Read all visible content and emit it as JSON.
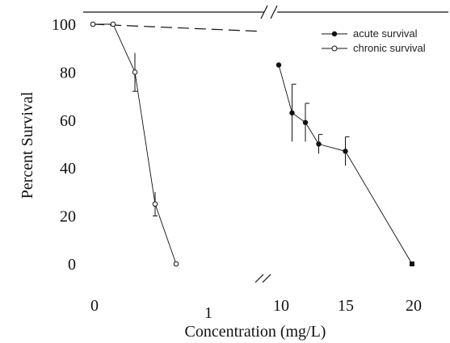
{
  "chart_data": {
    "type": "line",
    "xlabel": "Concentration (mg/L)",
    "ylabel": "Percent Survival",
    "ylim": [
      0,
      100
    ],
    "y_ticks": [
      "0",
      "20",
      "40",
      "60",
      "80",
      "100"
    ],
    "x_tick_labels": [
      "0",
      "1",
      "10",
      "15",
      "20"
    ],
    "x_axis_break": "between 2 and 10",
    "legend_position": "top-right",
    "series": [
      {
        "name": "acute survival",
        "marker": "filled-circle",
        "x": [
          10,
          11,
          12,
          13,
          15,
          20
        ],
        "y": [
          83,
          63,
          59,
          50,
          47,
          0
        ]
      },
      {
        "name": "chronic survival",
        "marker": "open-circle",
        "x": [
          0,
          0.5,
          1.0,
          1.5,
          2.0
        ],
        "y": [
          100,
          100,
          80,
          25,
          0
        ]
      }
    ],
    "reference_line": {
      "style": "dashed",
      "x": [
        0,
        9
      ],
      "y": [
        100,
        97
      ]
    }
  }
}
